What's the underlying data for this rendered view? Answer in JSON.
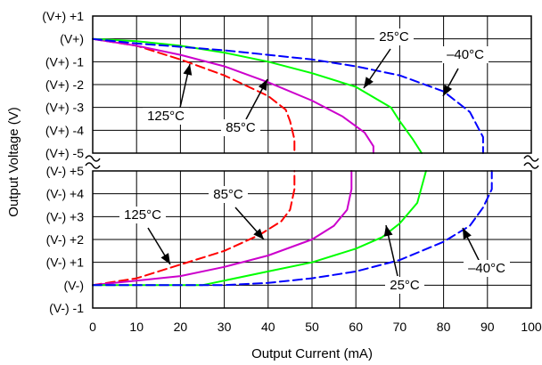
{
  "chart_data": {
    "type": "line",
    "xlabel": "Output Current (mA)",
    "ylabel": "Output Voltage (V)",
    "xlim": [
      0,
      100
    ],
    "x_ticks": [
      0,
      10,
      20,
      30,
      40,
      50,
      60,
      70,
      80,
      90,
      100
    ],
    "grid": true,
    "legend": "none",
    "upper_panel": {
      "ylim": [
        -5,
        1
      ],
      "y_ticks": [
        {
          "value": 1,
          "label": "(V+) +1"
        },
        {
          "value": 0,
          "label": "(V+)"
        },
        {
          "value": -1,
          "label": "(V+) -1"
        },
        {
          "value": -2,
          "label": "(V+) -2"
        },
        {
          "value": -3,
          "label": "(V+) -3"
        },
        {
          "value": -4,
          "label": "(V+) -4"
        },
        {
          "value": -5,
          "label": "(V+) -5"
        }
      ]
    },
    "lower_panel": {
      "ylim": [
        -1,
        5
      ],
      "y_ticks": [
        {
          "value": 5,
          "label": "(V-) +5"
        },
        {
          "value": 4,
          "label": "(V-) +4"
        },
        {
          "value": 3,
          "label": "(V-) +3"
        },
        {
          "value": 2,
          "label": "(V-) +2"
        },
        {
          "value": 1,
          "label": "(V-) +1"
        },
        {
          "value": 0,
          "label": "(V-)"
        },
        {
          "value": -1,
          "label": "(V-) -1"
        }
      ]
    },
    "series": [
      {
        "name": "125°C",
        "color": "#ff0000",
        "dash": "dashed",
        "panel": "upper",
        "x": [
          0,
          10,
          20,
          30,
          40,
          44,
          45,
          46,
          46
        ],
        "y": [
          0,
          -0.3,
          -0.9,
          -1.6,
          -2.5,
          -3.1,
          -3.6,
          -4.4,
          -5
        ]
      },
      {
        "name": "85°C",
        "color": "#cc00cc",
        "dash": "solid",
        "panel": "upper",
        "x": [
          0,
          10,
          20,
          30,
          40,
          50,
          57,
          62,
          64,
          64
        ],
        "y": [
          0,
          -0.3,
          -0.7,
          -1.2,
          -1.9,
          -2.7,
          -3.4,
          -4.1,
          -4.7,
          -5
        ]
      },
      {
        "name": "25°C",
        "color": "#00ff00",
        "dash": "solid",
        "panel": "upper",
        "x": [
          0,
          10,
          20,
          30,
          40,
          50,
          60,
          68,
          70,
          73,
          75
        ],
        "y": [
          0,
          -0.1,
          -0.3,
          -0.6,
          -1.0,
          -1.5,
          -2.1,
          -3.0,
          -3.6,
          -4.4,
          -5
        ]
      },
      {
        "name": "-40°C",
        "color": "#0000ff",
        "dash": "dashed",
        "panel": "upper",
        "x": [
          0,
          10,
          20,
          30,
          40,
          50,
          60,
          70,
          80,
          86,
          89,
          89
        ],
        "y": [
          0,
          -0.2,
          -0.35,
          -0.5,
          -0.7,
          -0.9,
          -1.2,
          -1.6,
          -2.3,
          -3.2,
          -4.3,
          -5
        ]
      },
      {
        "name": "125°C",
        "color": "#ff0000",
        "dash": "dashed",
        "panel": "lower",
        "x": [
          0,
          10,
          20,
          30,
          38,
          43,
          45,
          46,
          46
        ],
        "y": [
          0,
          0.3,
          0.9,
          1.5,
          2.2,
          2.8,
          3.3,
          4.2,
          5
        ]
      },
      {
        "name": "85°C",
        "color": "#cc00cc",
        "dash": "solid",
        "panel": "lower",
        "x": [
          0,
          10,
          20,
          30,
          40,
          50,
          55,
          58,
          59,
          59
        ],
        "y": [
          0,
          0.2,
          0.4,
          0.8,
          1.3,
          2.0,
          2.6,
          3.3,
          4.2,
          5
        ]
      },
      {
        "name": "25°C",
        "color": "#00ff00",
        "dash": "solid",
        "panel": "lower",
        "x": [
          0,
          10,
          20,
          25,
          30,
          40,
          50,
          60,
          66,
          70,
          74,
          75,
          76
        ],
        "y": [
          0,
          0,
          0,
          0,
          0.2,
          0.6,
          1.0,
          1.6,
          2.1,
          2.7,
          3.6,
          4.3,
          5
        ]
      },
      {
        "name": "-40°C",
        "color": "#0000ff",
        "dash": "dashed",
        "panel": "lower",
        "x": [
          0,
          10,
          20,
          30,
          40,
          50,
          60,
          70,
          80,
          86,
          89,
          91,
          91
        ],
        "y": [
          0,
          0,
          0,
          0,
          0.1,
          0.3,
          0.6,
          1.1,
          1.9,
          2.6,
          3.4,
          4.2,
          5
        ]
      }
    ],
    "annotations": [
      {
        "text": "125°C",
        "panel": "upper"
      },
      {
        "text": "85°C",
        "panel": "upper"
      },
      {
        "text": "25°C",
        "panel": "upper"
      },
      {
        "text": "–40°C",
        "panel": "upper"
      },
      {
        "text": "125°C",
        "panel": "lower"
      },
      {
        "text": "85°C",
        "panel": "lower"
      },
      {
        "text": "25°C",
        "panel": "lower"
      },
      {
        "text": "–40°C",
        "panel": "lower"
      }
    ]
  }
}
